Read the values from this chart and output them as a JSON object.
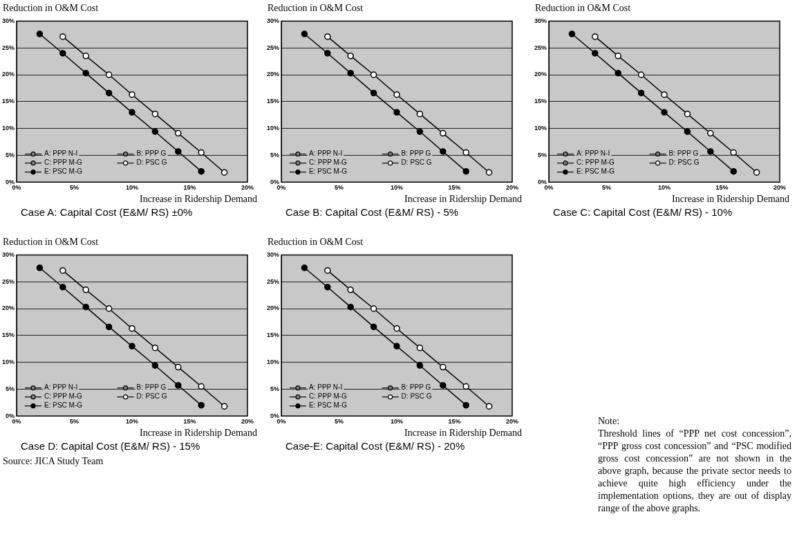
{
  "chart_data": [
    {
      "type": "line",
      "title": "Case A: Capital Cost (E&M/ RS) ±0%",
      "xlabel": "Increase in Ridership Demand",
      "ylabel": "Reduction in O&M Cost",
      "xlim": [
        0,
        20
      ],
      "ylim": [
        0,
        30
      ],
      "xticks": [
        {
          "value": 0,
          "label": "0%"
        },
        {
          "value": 5,
          "label": "5%"
        },
        {
          "value": 10,
          "label": "10%"
        },
        {
          "value": 15,
          "label": "15%"
        },
        {
          "value": 20,
          "label": "20%"
        }
      ],
      "yticks": [
        {
          "value": 0,
          "label": "0%"
        },
        {
          "value": 5,
          "label": "5%"
        },
        {
          "value": 10,
          "label": "10%"
        },
        {
          "value": 15,
          "label": "15%"
        },
        {
          "value": 20,
          "label": "20%"
        },
        {
          "value": 25,
          "label": "25%"
        },
        {
          "value": 30,
          "label": "30%"
        }
      ],
      "grid": "y",
      "legend": "bottom left",
      "marker": "circle",
      "line_style": "solid",
      "series": [
        {
          "name": "A: PPP N-I",
          "color": "#808080"
        },
        {
          "name": "B: PPP G",
          "color": "#808080"
        },
        {
          "name": "C: PPP M-G",
          "color": "#808080"
        },
        {
          "name": "D: PSC G",
          "color": "#ffffff",
          "x": [
            4,
            6,
            8,
            10,
            12,
            14,
            16,
            18
          ],
          "values": [
            27.1,
            23.5,
            20,
            16.3,
            12.7,
            9.1,
            5.5,
            1.8
          ]
        },
        {
          "name": "E: PSC M-G",
          "color": "#000000",
          "x": [
            2,
            4,
            6,
            8,
            10,
            12,
            14,
            16
          ],
          "values": [
            27.6,
            24,
            20.3,
            16.6,
            13,
            9.4,
            5.7,
            2
          ]
        }
      ]
    },
    {
      "type": "line",
      "title": "Case B: Capital Cost (E&M/ RS) - 5%",
      "xlabel": "Increase in Ridership Demand",
      "ylabel": "Reduction in O&M Cost",
      "xlim": [
        0,
        20
      ],
      "ylim": [
        0,
        30
      ],
      "xticks": [
        {
          "value": 0,
          "label": "0%"
        },
        {
          "value": 5,
          "label": "5%"
        },
        {
          "value": 10,
          "label": "10%"
        },
        {
          "value": 15,
          "label": "15%"
        },
        {
          "value": 20,
          "label": "20%"
        }
      ],
      "yticks": [
        {
          "value": 0,
          "label": "0%"
        },
        {
          "value": 5,
          "label": "5%"
        },
        {
          "value": 10,
          "label": "10%"
        },
        {
          "value": 15,
          "label": "15%"
        },
        {
          "value": 20,
          "label": "20%"
        },
        {
          "value": 25,
          "label": "25%"
        },
        {
          "value": 30,
          "label": "30%"
        }
      ],
      "grid": "y",
      "legend": "bottom left",
      "marker": "circle",
      "line_style": "solid",
      "series": [
        {
          "name": "A: PPP N-I",
          "color": "#808080"
        },
        {
          "name": "B: PPP G",
          "color": "#808080"
        },
        {
          "name": "C: PPP M-G",
          "color": "#808080"
        },
        {
          "name": "D: PSC G",
          "color": "#ffffff",
          "x": [
            4,
            6,
            8,
            10,
            12,
            14,
            16,
            18
          ],
          "values": [
            27.1,
            23.5,
            20,
            16.3,
            12.7,
            9.1,
            5.5,
            1.8
          ]
        },
        {
          "name": "E: PSC M-G",
          "color": "#000000",
          "x": [
            2,
            4,
            6,
            8,
            10,
            12,
            14,
            16
          ],
          "values": [
            27.6,
            24,
            20.3,
            16.6,
            13,
            9.4,
            5.7,
            2
          ]
        }
      ]
    },
    {
      "type": "line",
      "title": "Case C: Capital Cost (E&M/ RS) - 10%",
      "xlabel": "Increase in Ridership Demand",
      "ylabel": "Reduction in O&M Cost",
      "xlim": [
        0,
        20
      ],
      "ylim": [
        0,
        30
      ],
      "xticks": [
        {
          "value": 0,
          "label": "0%"
        },
        {
          "value": 5,
          "label": "5%"
        },
        {
          "value": 10,
          "label": "10%"
        },
        {
          "value": 15,
          "label": "15%"
        },
        {
          "value": 20,
          "label": "20%"
        }
      ],
      "yticks": [
        {
          "value": 0,
          "label": "0%"
        },
        {
          "value": 5,
          "label": "5%"
        },
        {
          "value": 10,
          "label": "10%"
        },
        {
          "value": 15,
          "label": "15%"
        },
        {
          "value": 20,
          "label": "20%"
        },
        {
          "value": 25,
          "label": "25%"
        },
        {
          "value": 30,
          "label": "30%"
        }
      ],
      "grid": "y",
      "legend": "bottom left",
      "marker": "circle",
      "line_style": "solid",
      "series": [
        {
          "name": "A: PPP N-I",
          "color": "#808080"
        },
        {
          "name": "B: PPP G",
          "color": "#808080"
        },
        {
          "name": "C: PPP M-G",
          "color": "#808080"
        },
        {
          "name": "D: PSC G",
          "color": "#ffffff",
          "x": [
            4,
            6,
            8,
            10,
            12,
            14,
            16,
            18
          ],
          "values": [
            27.1,
            23.5,
            20,
            16.3,
            12.7,
            9.1,
            5.5,
            1.8
          ]
        },
        {
          "name": "E: PSC M-G",
          "color": "#000000",
          "x": [
            2,
            4,
            6,
            8,
            10,
            12,
            14,
            16
          ],
          "values": [
            27.6,
            24,
            20.3,
            16.6,
            13,
            9.4,
            5.7,
            2
          ]
        }
      ]
    },
    {
      "type": "line",
      "title": "Case D: Capital Cost (E&M/ RS) - 15%",
      "xlabel": "Increase in Ridership Demand",
      "ylabel": "Reduction in O&M Cost",
      "xlim": [
        0,
        20
      ],
      "ylim": [
        0,
        30
      ],
      "xticks": [
        {
          "value": 0,
          "label": "0%"
        },
        {
          "value": 5,
          "label": "5%"
        },
        {
          "value": 10,
          "label": "10%"
        },
        {
          "value": 15,
          "label": "15%"
        },
        {
          "value": 20,
          "label": "20%"
        }
      ],
      "yticks": [
        {
          "value": 0,
          "label": "0%"
        },
        {
          "value": 5,
          "label": "5%"
        },
        {
          "value": 10,
          "label": "10%"
        },
        {
          "value": 15,
          "label": "15%"
        },
        {
          "value": 20,
          "label": "20%"
        },
        {
          "value": 25,
          "label": "25%"
        },
        {
          "value": 30,
          "label": "30%"
        }
      ],
      "grid": "y",
      "legend": "bottom left",
      "marker": "circle",
      "line_style": "solid",
      "annotations": [
        "Source: JICA Study Team"
      ],
      "series": [
        {
          "name": "A: PPP N-I",
          "color": "#808080"
        },
        {
          "name": "B: PPP G",
          "color": "#808080"
        },
        {
          "name": "C: PPP M-G",
          "color": "#808080"
        },
        {
          "name": "D: PSC G",
          "color": "#ffffff",
          "x": [
            4,
            6,
            8,
            10,
            12,
            14,
            16,
            18
          ],
          "values": [
            27.1,
            23.5,
            20,
            16.3,
            12.7,
            9.1,
            5.5,
            1.8
          ]
        },
        {
          "name": "E: PSC M-G",
          "color": "#000000",
          "x": [
            2,
            4,
            6,
            8,
            10,
            12,
            14,
            16
          ],
          "values": [
            27.6,
            24,
            20.3,
            16.6,
            13,
            9.4,
            5.7,
            2
          ]
        }
      ]
    },
    {
      "type": "line",
      "title": "Case-E: Capital Cost (E&M/ RS) - 20%",
      "xlabel": "Increase in Ridership Demand",
      "ylabel": "Reduction in O&M Cost",
      "xlim": [
        0,
        20
      ],
      "ylim": [
        0,
        30
      ],
      "xticks": [
        {
          "value": 0,
          "label": "0%"
        },
        {
          "value": 5,
          "label": "5%"
        },
        {
          "value": 10,
          "label": "10%"
        },
        {
          "value": 15,
          "label": "15%"
        },
        {
          "value": 20,
          "label": "20%"
        }
      ],
      "yticks": [
        {
          "value": 0,
          "label": "0%"
        },
        {
          "value": 5,
          "label": "5%"
        },
        {
          "value": 10,
          "label": "10%"
        },
        {
          "value": 15,
          "label": "15%"
        },
        {
          "value": 20,
          "label": "20%"
        },
        {
          "value": 25,
          "label": "25%"
        },
        {
          "value": 30,
          "label": "30%"
        }
      ],
      "grid": "y",
      "legend": "bottom left",
      "marker": "circle",
      "line_style": "solid",
      "series": [
        {
          "name": "A: PPP N-I",
          "color": "#808080"
        },
        {
          "name": "B: PPP G",
          "color": "#808080"
        },
        {
          "name": "C: PPP M-G",
          "color": "#808080"
        },
        {
          "name": "D: PSC G",
          "color": "#ffffff",
          "x": [
            4,
            6,
            8,
            10,
            12,
            14,
            16,
            18
          ],
          "values": [
            27.1,
            23.5,
            20,
            16.3,
            12.7,
            9.1,
            5.5,
            1.8
          ]
        },
        {
          "name": "E: PSC M-G",
          "color": "#000000",
          "x": [
            2,
            4,
            6,
            8,
            10,
            12,
            14,
            16
          ],
          "values": [
            27.6,
            24,
            20.3,
            16.6,
            13,
            9.4,
            5.7,
            2
          ]
        }
      ]
    },
    {
      "type": "other",
      "title": "Note:",
      "annotations": [
        "Threshold lines of “PPP net cost concession”, “PPP gross cost concession” and “PSC modified gross cost concession” are not shown in the above graph, because the private sector needs to achieve quite high efficiency under the implementation options, they are out of display range of the above graphs."
      ]
    }
  ]
}
